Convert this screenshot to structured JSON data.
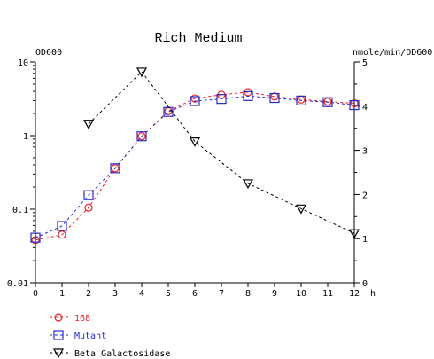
{
  "chart_data": {
    "type": "line",
    "title": "Rich Medium",
    "left_axis_label": "OD600",
    "right_axis_label": "nmole/min/OD600",
    "x_unit_label": "h",
    "x_ticks": [
      0,
      1,
      2,
      3,
      4,
      5,
      6,
      7,
      8,
      9,
      10,
      11,
      12
    ],
    "xlim": [
      0,
      12
    ],
    "left_axis": {
      "scale": "log",
      "range": [
        0.01,
        10
      ],
      "tick_labels": [
        "10",
        "1",
        "0.1",
        "0.01"
      ],
      "tick_values": [
        10,
        1,
        0.1,
        0.01
      ]
    },
    "right_axis": {
      "scale": "linear",
      "range": [
        0,
        5
      ],
      "tick_labels": [
        "5",
        "4",
        "3",
        "2",
        "1",
        "0"
      ],
      "tick_values": [
        5,
        4,
        3,
        2,
        1,
        0
      ]
    },
    "grid": false,
    "legend_placement": "bottom-left",
    "series": [
      {
        "name": "168",
        "axis": "left",
        "color": "#e8202a",
        "marker": "circle",
        "x": [
          0,
          1,
          2,
          3,
          4,
          5,
          6,
          7,
          8,
          9,
          10,
          11,
          12
        ],
        "y": [
          0.038,
          0.045,
          0.105,
          0.36,
          0.98,
          2.15,
          3.2,
          3.6,
          3.9,
          3.4,
          3.1,
          2.9,
          2.75
        ]
      },
      {
        "name": "Mutant",
        "axis": "left",
        "color": "#2828c8",
        "marker": "square",
        "x": [
          0,
          1,
          2,
          3,
          4,
          5,
          6,
          7,
          8,
          9,
          10,
          11,
          12
        ],
        "y": [
          0.041,
          0.059,
          0.155,
          0.36,
          0.98,
          2.1,
          2.95,
          3.15,
          3.45,
          3.25,
          3.0,
          2.85,
          2.6
        ]
      },
      {
        "name": "Beta Galactosidase",
        "axis": "right",
        "color": "#000000",
        "marker": "triangle-down",
        "x": [
          2,
          4,
          6,
          8,
          10,
          12
        ],
        "y": [
          3.6,
          4.78,
          3.2,
          2.25,
          1.68,
          1.12
        ]
      }
    ]
  }
}
